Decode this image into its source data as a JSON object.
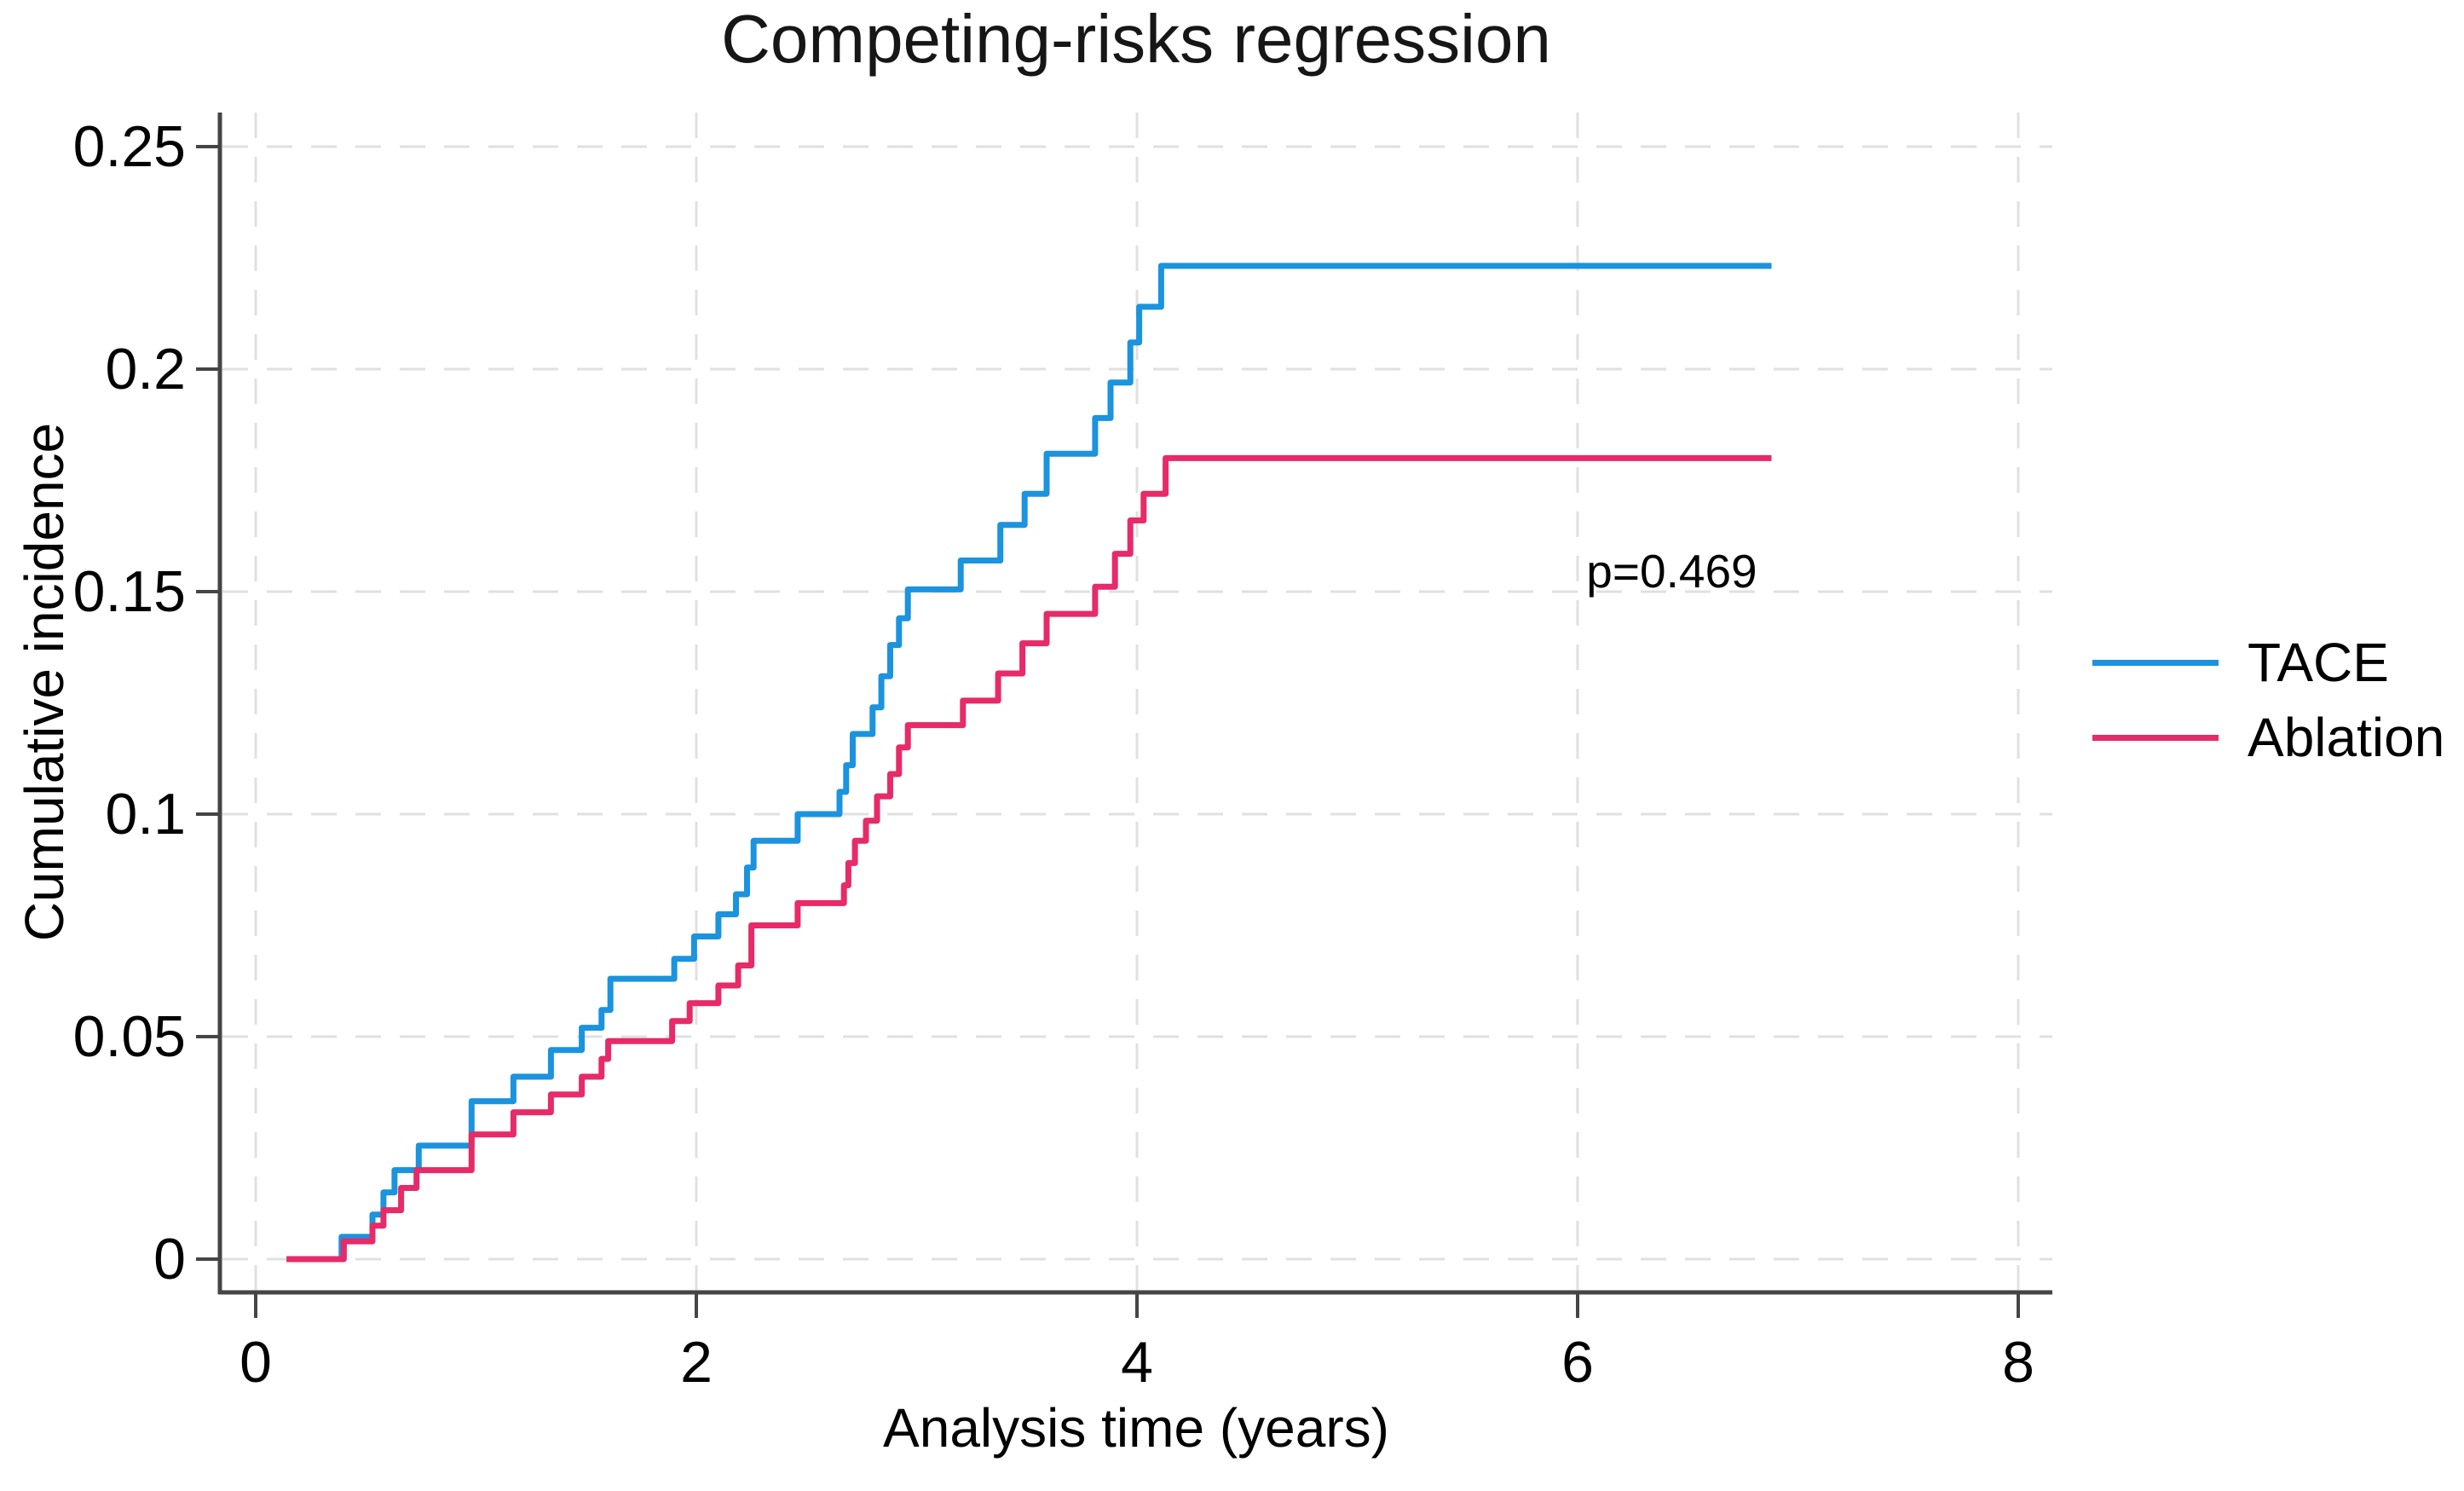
{
  "chart_data": {
    "type": "line",
    "line_style": "step-post",
    "title": "Competing-risks regression",
    "xlabel": "Analysis time (years)",
    "ylabel": "Cumulative incidence",
    "xlim": [
      0,
      8.15
    ],
    "ylim": [
      0,
      0.2575
    ],
    "grid": "dashed horizontal and vertical gridlines at every tick",
    "legend_position": "right-outside",
    "x_ticks": {
      "values": [
        0,
        2,
        4,
        6,
        8
      ],
      "labels": [
        "0",
        "2",
        "4",
        "6",
        "8"
      ]
    },
    "y_ticks": {
      "values": [
        0,
        0.05,
        0.1,
        0.15,
        0.2,
        0.25
      ],
      "labels": [
        "0",
        "0.05",
        "0.1",
        "0.15",
        "0.2",
        "0.25"
      ]
    },
    "annotation": {
      "text": "p=0.469",
      "x": 6.04,
      "y": 0.152
    },
    "style": {
      "grid_color": "#E0E0E0",
      "axis_color": "#454545",
      "text_color": "#000000",
      "background": "#FFFFFF"
    },
    "series": [
      {
        "name": "TACE",
        "color": "#1B93DE",
        "steps": [
          [
            0.14,
            0
          ],
          [
            0.39,
            0.005
          ],
          [
            0.53,
            0.01
          ],
          [
            0.58,
            0.015
          ],
          [
            0.63,
            0.02
          ],
          [
            0.74,
            0.0255
          ],
          [
            0.98,
            0.0355
          ],
          [
            1.17,
            0.041
          ],
          [
            1.34,
            0.047
          ],
          [
            1.48,
            0.052
          ],
          [
            1.57,
            0.056
          ],
          [
            1.61,
            0.063
          ],
          [
            1.9,
            0.0675
          ],
          [
            1.99,
            0.0725
          ],
          [
            2.1,
            0.0775
          ],
          [
            2.18,
            0.082
          ],
          [
            2.23,
            0.088
          ],
          [
            2.26,
            0.094
          ],
          [
            2.46,
            0.1
          ],
          [
            2.65,
            0.105
          ],
          [
            2.68,
            0.111
          ],
          [
            2.71,
            0.118
          ],
          [
            2.8,
            0.124
          ],
          [
            2.84,
            0.131
          ],
          [
            2.88,
            0.138
          ],
          [
            2.92,
            0.144
          ],
          [
            2.96,
            0.1505
          ],
          [
            3.2,
            0.157
          ],
          [
            3.38,
            0.165
          ],
          [
            3.49,
            0.172
          ],
          [
            3.59,
            0.181
          ],
          [
            3.81,
            0.189
          ],
          [
            3.88,
            0.197
          ],
          [
            3.97,
            0.206
          ],
          [
            4.01,
            0.214
          ],
          [
            4.11,
            0.2232
          ],
          [
            6.88,
            0.2232
          ]
        ]
      },
      {
        "name": "Ablation",
        "color": "#E72A68",
        "steps": [
          [
            0.14,
            0
          ],
          [
            0.4,
            0.004
          ],
          [
            0.53,
            0.0075
          ],
          [
            0.58,
            0.011
          ],
          [
            0.66,
            0.016
          ],
          [
            0.73,
            0.02
          ],
          [
            0.98,
            0.028
          ],
          [
            1.17,
            0.033
          ],
          [
            1.34,
            0.037
          ],
          [
            1.48,
            0.041
          ],
          [
            1.57,
            0.045
          ],
          [
            1.6,
            0.049
          ],
          [
            1.89,
            0.0535
          ],
          [
            1.97,
            0.0575
          ],
          [
            2.1,
            0.0615
          ],
          [
            2.19,
            0.066
          ],
          [
            2.25,
            0.075
          ],
          [
            2.46,
            0.08
          ],
          [
            2.67,
            0.084
          ],
          [
            2.69,
            0.089
          ],
          [
            2.72,
            0.094
          ],
          [
            2.77,
            0.0985
          ],
          [
            2.82,
            0.104
          ],
          [
            2.88,
            0.109
          ],
          [
            2.92,
            0.115
          ],
          [
            2.96,
            0.12
          ],
          [
            3.21,
            0.1255
          ],
          [
            3.37,
            0.1316
          ],
          [
            3.48,
            0.1384
          ],
          [
            3.59,
            0.145
          ],
          [
            3.81,
            0.1511
          ],
          [
            3.9,
            0.1585
          ],
          [
            3.97,
            0.166
          ],
          [
            4.03,
            0.172
          ],
          [
            4.13,
            0.18
          ],
          [
            6.88,
            0.18
          ]
        ]
      }
    ]
  }
}
